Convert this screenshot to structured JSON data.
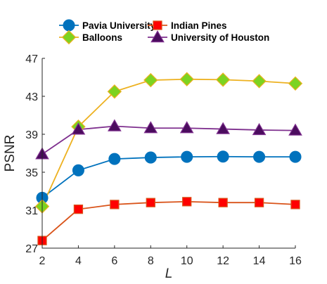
{
  "chart_data": {
    "type": "line",
    "xlabel": "L",
    "ylabel": "PSNR",
    "x": [
      2,
      4,
      6,
      8,
      10,
      12,
      14,
      16
    ],
    "xlim": [
      2,
      16
    ],
    "ylim": [
      27,
      47
    ],
    "xticks": [
      2,
      4,
      6,
      8,
      10,
      12,
      14,
      16
    ],
    "yticks": [
      27,
      31,
      35,
      39,
      43,
      47
    ],
    "grid": false,
    "legend_position": "top",
    "series": [
      {
        "name": "Pavia University",
        "color": "#0072BD",
        "marker": "circle",
        "marker_fill": "#0072BD",
        "values": [
          32.3,
          35.2,
          36.4,
          36.55,
          36.62,
          36.65,
          36.62,
          36.62
        ]
      },
      {
        "name": "Indian Pines",
        "color": "#D95319",
        "marker": "square",
        "marker_fill": "#FF0000",
        "values": [
          27.8,
          31.1,
          31.6,
          31.8,
          31.9,
          31.8,
          31.8,
          31.6
        ]
      },
      {
        "name": "Balloons",
        "color": "#EDB120",
        "marker": "diamond",
        "marker_fill": "#7CD321",
        "values": [
          31.4,
          39.8,
          43.5,
          44.7,
          44.8,
          44.75,
          44.6,
          44.35
        ]
      },
      {
        "name": "University of Houston",
        "color": "#7E2F8E",
        "marker": "triangle",
        "marker_fill": "#4B0C5E",
        "values": [
          36.9,
          39.5,
          39.85,
          39.65,
          39.65,
          39.55,
          39.45,
          39.4
        ]
      }
    ]
  }
}
